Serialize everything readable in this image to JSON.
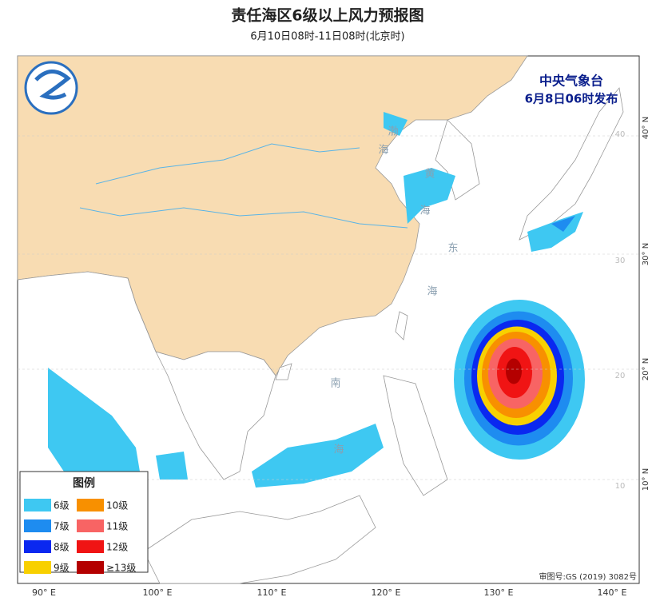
{
  "header": {
    "title": "责任海区6级以上风力预报图",
    "subtitle": "6月10日08时-11日08时(北京时)"
  },
  "issuer": {
    "name": "中央气象台",
    "time": "6月8日06时发布"
  },
  "map": {
    "lon_labels": [
      "90° E",
      "100° E",
      "110° E",
      "120° E",
      "130° E",
      "140° E"
    ],
    "lat_labels": [
      "40° N",
      "30° N",
      "20° N",
      "10° N"
    ],
    "inner_lat_labels": [
      "40",
      "30",
      "20",
      "10"
    ],
    "sea_labels": [
      "渤",
      "海",
      "黄",
      "海",
      "东",
      "海",
      "南",
      "海"
    ],
    "approval": "审图号:GS (2019) 3082号"
  },
  "legend": {
    "title": "图例",
    "items": [
      {
        "label": "6级",
        "color": "#3ec8f2"
      },
      {
        "label": "7级",
        "color": "#1e8cf0"
      },
      {
        "label": "8级",
        "color": "#0a28f0"
      },
      {
        "label": "9级",
        "color": "#f8d000"
      },
      {
        "label": "10级",
        "color": "#f89000"
      },
      {
        "label": "11级",
        "color": "#f86464"
      },
      {
        "label": "12级",
        "color": "#f01414"
      },
      {
        "label": "≥13级",
        "color": "#b40000"
      }
    ]
  }
}
